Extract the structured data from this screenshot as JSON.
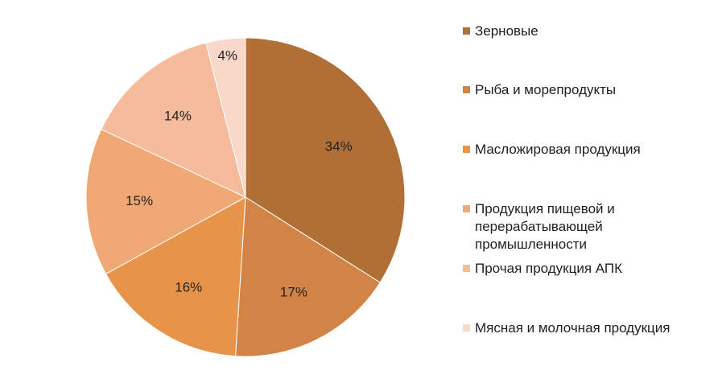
{
  "chart_data": {
    "type": "pie",
    "title": "",
    "start": "top",
    "direction": "clockwise",
    "slices": [
      {
        "label": "Зерновые",
        "value": 34,
        "value_label": "34%",
        "color": "#b07035"
      },
      {
        "label": "Рыба и морепродукты",
        "value": 17,
        "value_label": "17%",
        "color": "#d28446"
      },
      {
        "label": "Масложировая продукция",
        "value": 16,
        "value_label": "16%",
        "color": "#e7944a"
      },
      {
        "label": "Продукция пищевой и\nперерабатывающей\nпромышленности",
        "value": 15,
        "value_label": "15%",
        "color": "#f0a974"
      },
      {
        "label": "Прочая продукция АПК",
        "value": 14,
        "value_label": "14%",
        "color": "#f5bb9a"
      },
      {
        "label": "Мясная и молочная продукция",
        "value": 4,
        "value_label": "4%",
        "color": "#f9d8c9"
      }
    ],
    "legend": {
      "position": "right"
    }
  }
}
